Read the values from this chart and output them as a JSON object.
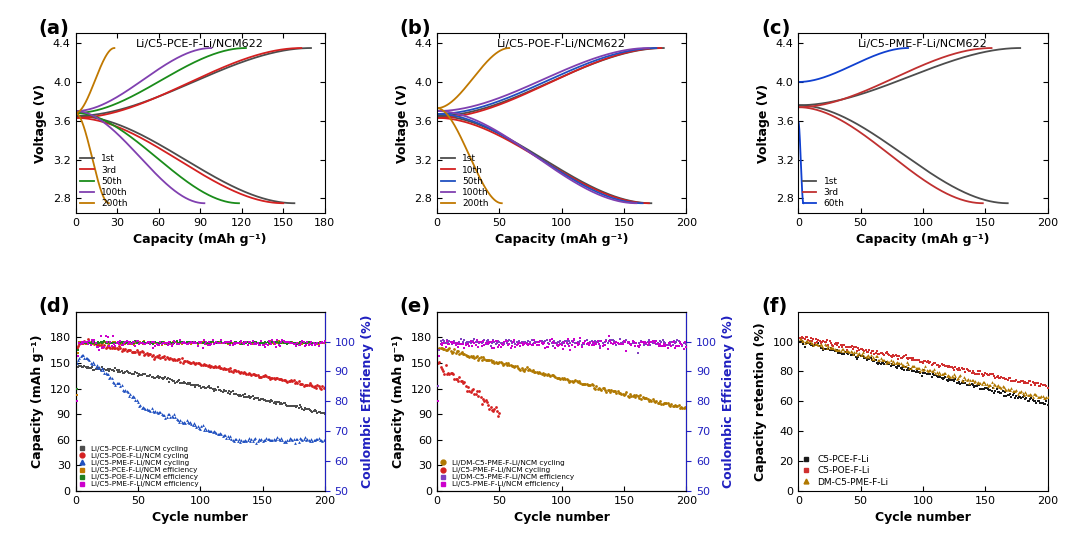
{
  "panel_a": {
    "title": "Li/C5-PCE-F-Li/NCM622",
    "xlabel": "Capacity (mAh g⁻¹)",
    "ylabel": "Voltage (V)",
    "xlim": [
      0,
      180
    ],
    "ylim": [
      2.65,
      4.5
    ],
    "xticks": [
      0,
      30,
      60,
      90,
      120,
      150,
      180
    ],
    "yticks": [
      2.8,
      3.2,
      3.6,
      4.0,
      4.4
    ],
    "curves": [
      {
        "label": "1st",
        "color": "#4d4d4d",
        "cxe": 170,
        "dxe": 158,
        "ysc": 3.65,
        "ysd": 3.65
      },
      {
        "label": "3rd",
        "color": "#d42020",
        "cxe": 163,
        "dxe": 150,
        "ysc": 3.63,
        "ysd": 3.63
      },
      {
        "label": "50th",
        "color": "#1a8c1a",
        "cxe": 123,
        "dxe": 118,
        "ysc": 3.68,
        "ysd": 3.68
      },
      {
        "label": "100th",
        "color": "#8040b0",
        "cxe": 98,
        "dxe": 93,
        "ysc": 3.7,
        "ysd": 3.7
      },
      {
        "label": "200th",
        "color": "#c07800",
        "cxe": 28,
        "dxe": 24,
        "ysc": 3.68,
        "ysd": 3.68
      }
    ]
  },
  "panel_b": {
    "title": "Li/C5-POE-F-Li/NCM622",
    "xlabel": "Capacity (mAh g⁻¹)",
    "ylabel": "Voltage (V)",
    "xlim": [
      0,
      200
    ],
    "ylim": [
      2.65,
      4.5
    ],
    "xticks": [
      0,
      50,
      100,
      150,
      200
    ],
    "yticks": [
      2.8,
      3.2,
      3.6,
      4.0,
      4.4
    ],
    "curves": [
      {
        "label": "1st",
        "color": "#4d4d4d",
        "cxe": 182,
        "dxe": 172,
        "ysc": 3.65,
        "ysd": 3.65
      },
      {
        "label": "10th",
        "color": "#d42020",
        "cxe": 180,
        "dxe": 170,
        "ysc": 3.63,
        "ysd": 3.63
      },
      {
        "label": "50th",
        "color": "#2050c0",
        "cxe": 176,
        "dxe": 165,
        "ysc": 3.67,
        "ysd": 3.67
      },
      {
        "label": "100th",
        "color": "#8040b0",
        "cxe": 170,
        "dxe": 160,
        "ysc": 3.7,
        "ysd": 3.7
      },
      {
        "label": "200th",
        "color": "#c07800",
        "cxe": 58,
        "dxe": 52,
        "ysc": 3.73,
        "ysd": 3.73
      }
    ]
  },
  "panel_c": {
    "title": "Li/C5-PME-F-Li/NCM622",
    "xlabel": "Capacity (mAh g⁻¹)",
    "ylabel": "Voltage (V)",
    "xlim": [
      0,
      200
    ],
    "ylim": [
      2.65,
      4.5
    ],
    "xticks": [
      0,
      50,
      100,
      150,
      200
    ],
    "yticks": [
      2.8,
      3.2,
      3.6,
      4.0,
      4.4
    ],
    "curves": [
      {
        "label": "1st",
        "color": "#4d4d4d",
        "cxe": 178,
        "dxe": 168,
        "ysc": 3.76,
        "ysd": 3.76
      },
      {
        "label": "3rd",
        "color": "#c03030",
        "cxe": 155,
        "dxe": 148,
        "ysc": 3.74,
        "ysd": 3.74
      },
      {
        "label": "60th",
        "color": "#1040d0",
        "cxe": 88,
        "dxe": 4,
        "ysc": 4.0,
        "ysd": 3.59
      }
    ]
  },
  "panel_d": {
    "xlabel": "Cycle number",
    "ylabel_left": "Capacity (mAh g⁻¹)",
    "ylabel_right": "Coulombic Efficiency (%)",
    "xlim": [
      0,
      200
    ],
    "ylim_left": [
      0,
      210
    ],
    "ylim_right": [
      50,
      110
    ],
    "yticks_left": [
      0,
      30,
      60,
      90,
      120,
      150,
      180
    ],
    "yticks_right": [
      50,
      60,
      70,
      80,
      90,
      100
    ]
  },
  "panel_e": {
    "xlabel": "Cycle number",
    "ylabel_left": "Capacity (mAh g⁻¹)",
    "ylabel_right": "Coulombic Efficiency (%)",
    "xlim": [
      0,
      200
    ],
    "ylim_left": [
      0,
      210
    ],
    "ylim_right": [
      50,
      110
    ],
    "yticks_left": [
      0,
      30,
      60,
      90,
      120,
      150,
      180
    ],
    "yticks_right": [
      50,
      60,
      70,
      80,
      90,
      100
    ]
  },
  "panel_f": {
    "xlabel": "Cycle number",
    "ylabel": "Capacity retention (%)",
    "xlim": [
      0,
      200
    ],
    "ylim": [
      0,
      120
    ],
    "yticks": [
      0,
      20,
      40,
      60,
      80,
      100
    ]
  },
  "label_fontsize": 9,
  "tick_fontsize": 8,
  "panel_label_fontsize": 14,
  "title_fontsize": 8,
  "lw": 1.3
}
